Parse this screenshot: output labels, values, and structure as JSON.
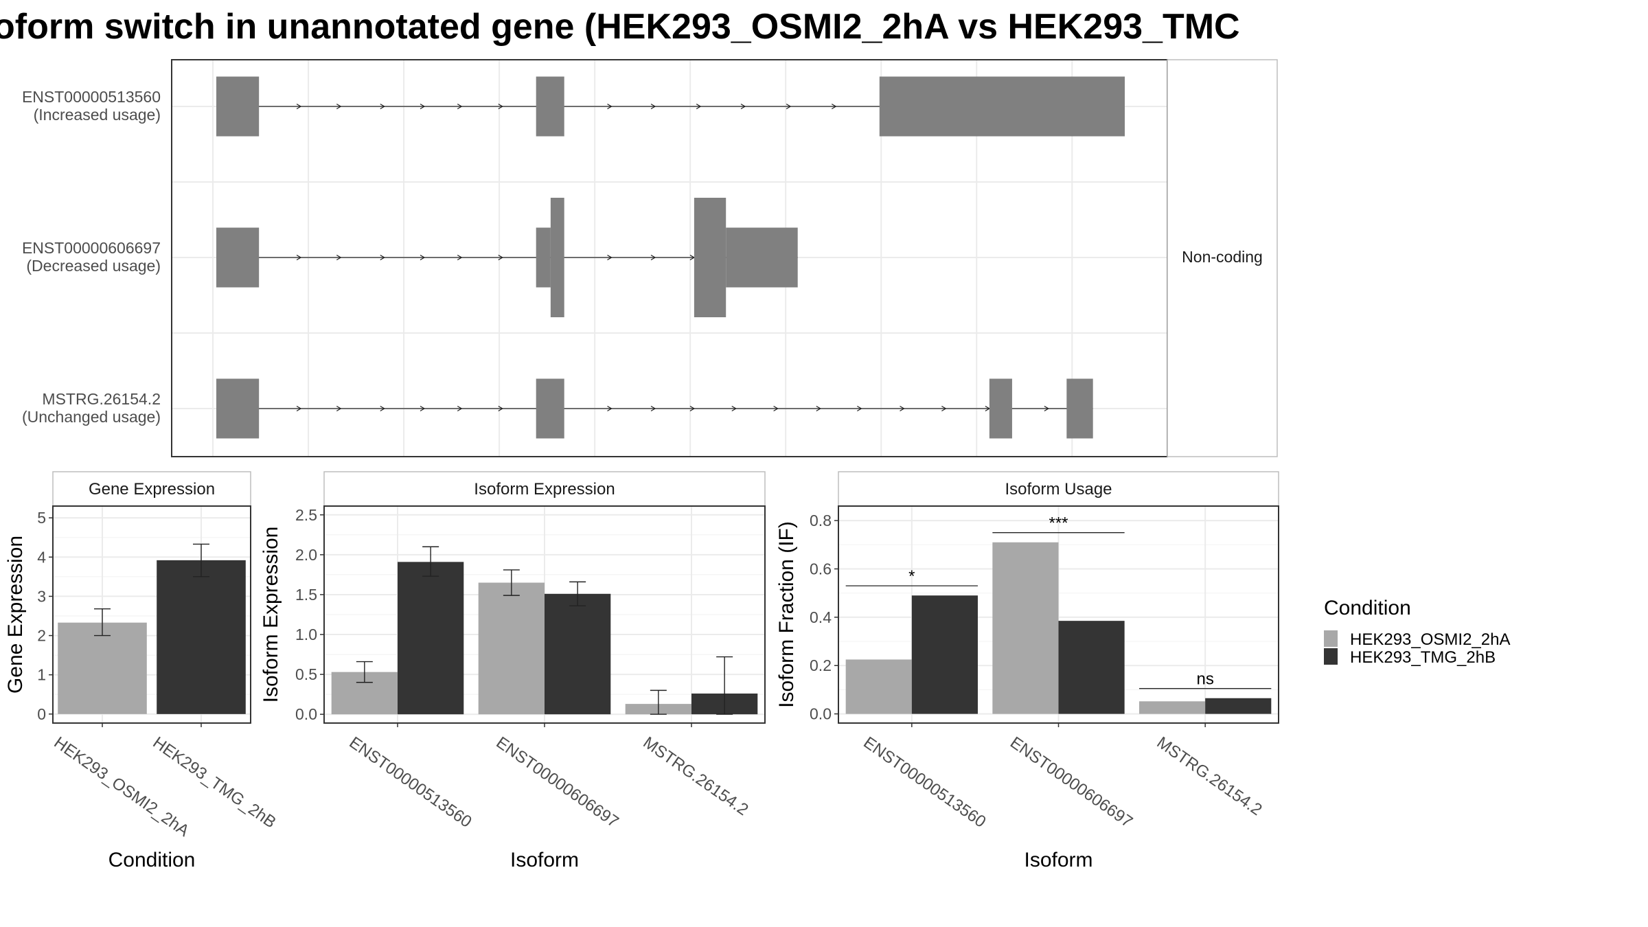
{
  "title": "oform switch in unannotated gene (HEK293_OSMI2_2hA vs HEK293_TMC",
  "colors": {
    "exon": "#808080",
    "cond_a": "#a8a8a8",
    "cond_b": "#343434",
    "grid": "#ebebeb",
    "panel_border": "#333333",
    "strip_border": "#bdbdbd",
    "text": "#4d4d4d"
  },
  "chart_data": [
    {
      "type": "gene-structure",
      "strip_label": "Non-coding",
      "isoforms": [
        {
          "line1": "ENST00000513560",
          "line2": "(Increased usage)",
          "exons": [
            [
              0.0,
              0.047
            ],
            [
              0.352,
              0.383
            ],
            [
              0.73,
              1.0
            ]
          ],
          "intron_arrows": [
            0.093,
            0.137,
            0.185,
            0.229,
            0.27,
            0.315,
            0.435,
            0.483,
            0.533,
            0.582,
            0.632,
            0.682
          ]
        },
        {
          "line1": "ENST00000606697",
          "line2": "(Decreased usage)",
          "exons": [
            [
              0.0,
              0.047
            ],
            [
              0.352,
              0.368
            ],
            [
              0.368,
              0.383,
              "tall"
            ],
            [
              0.526,
              0.561,
              "tall"
            ],
            [
              0.561,
              0.64
            ]
          ],
          "intron_arrows": [
            0.093,
            0.137,
            0.185,
            0.229,
            0.27,
            0.315,
            0.435,
            0.483,
            0.526
          ]
        },
        {
          "line1": "MSTRG.26154.2",
          "line2": "(Unchanged usage)",
          "exons": [
            [
              0.0,
              0.047
            ],
            [
              0.352,
              0.383
            ],
            [
              0.851,
              0.876
            ],
            [
              0.936,
              0.965
            ]
          ],
          "intron_arrows": [
            0.093,
            0.137,
            0.185,
            0.229,
            0.27,
            0.315,
            0.435,
            0.483,
            0.526,
            0.572,
            0.618,
            0.665,
            0.71,
            0.757,
            0.803,
            0.851,
            0.916
          ]
        }
      ]
    },
    {
      "type": "bar",
      "strip": "Gene Expression",
      "ylabel": "Gene Expression",
      "xlabel": "Condition",
      "ylim": [
        -0.23,
        5.3
      ],
      "yticks": [
        0,
        1,
        2,
        3,
        4,
        5
      ],
      "categories": [
        "HEK293_OSMI2_2hA",
        "HEK293_TMG_2hB"
      ],
      "values": [
        2.33,
        3.92
      ],
      "errors": [
        [
          2.0,
          2.68
        ],
        [
          3.5,
          4.33
        ]
      ]
    },
    {
      "type": "bar",
      "strip": "Isoform Expression",
      "ylabel": "Isoform Expression",
      "xlabel": "Isoform",
      "ylim": [
        -0.11,
        2.61
      ],
      "yticks": [
        "0.0",
        "0.5",
        "1.0",
        "1.5",
        "2.0",
        "2.5"
      ],
      "categories": [
        "ENST00000513560",
        "ENST00000606697",
        "MSTRG.26154.2"
      ],
      "series": [
        {
          "name": "HEK293_OSMI2_2hA",
          "values": [
            0.53,
            1.65,
            0.13
          ],
          "errors": [
            [
              0.4,
              0.66
            ],
            [
              1.49,
              1.81
            ],
            [
              0.0,
              0.3
            ]
          ]
        },
        {
          "name": "HEK293_TMG_2hB",
          "values": [
            1.91,
            1.51,
            0.26
          ],
          "errors": [
            [
              1.73,
              2.1
            ],
            [
              1.36,
              1.66
            ],
            [
              0.0,
              0.72
            ]
          ]
        }
      ]
    },
    {
      "type": "bar",
      "strip": "Isoform Usage",
      "ylabel": "Isoform Fraction (IF)",
      "xlabel": "Isoform",
      "ylim": [
        -0.038,
        0.86
      ],
      "yticks": [
        "0.0",
        "0.2",
        "0.4",
        "0.6",
        "0.8"
      ],
      "categories": [
        "ENST00000513560",
        "ENST00000606697",
        "MSTRG.26154.2"
      ],
      "series": [
        {
          "name": "HEK293_OSMI2_2hA",
          "values": [
            0.225,
            0.71,
            0.052
          ]
        },
        {
          "name": "HEK293_TMG_2hB",
          "values": [
            0.49,
            0.385,
            0.065
          ]
        }
      ],
      "significance": [
        {
          "label": "*",
          "y": 0.53
        },
        {
          "label": "***",
          "y": 0.75
        },
        {
          "label": "ns",
          "y": 0.105
        }
      ]
    }
  ],
  "legend": {
    "title": "Condition",
    "items": [
      "HEK293_OSMI2_2hA",
      "HEK293_TMG_2hB"
    ]
  }
}
